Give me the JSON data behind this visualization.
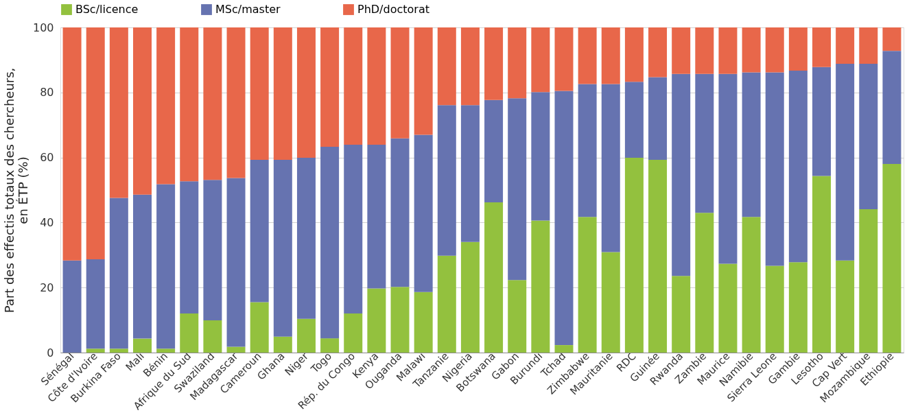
{
  "chart_data": {
    "type": "bar",
    "stacked": true,
    "ylabel": "Part des effectis totaux des chercheurs,\nen ÉTP (%)",
    "categories": [
      "Sénégal",
      "Côte d'Ivoire",
      "Burkina Faso",
      "Mali",
      "Bénin",
      "Afrique du Sud",
      "Swaziland",
      "Madagascar",
      "Cameroun",
      "Ghana",
      "Niger",
      "Togo",
      "Rép. du Congo",
      "Kenya",
      "Ouganda",
      "Malawi",
      "Tanzanie",
      "Nigeria",
      "Botswana",
      "Gabon",
      "Burundi",
      "Tchad",
      "Zimbabwe",
      "Mauritanie",
      "RDC",
      "Guinée",
      "Rwanda",
      "Zambie",
      "Maurice",
      "Namibie",
      "Sierra Leone",
      "Gambie",
      "Lesotho",
      "Cap Vert",
      "Mozambique",
      "Ethiopie"
    ],
    "series": [
      {
        "name": "BSc/licence",
        "color": "#93c13e",
        "values": [
          0,
          1.2,
          1.2,
          4.3,
          1.2,
          12,
          9.9,
          1.8,
          15.5,
          4.9,
          10.4,
          4.4,
          12,
          19.7,
          20.2,
          18.6,
          29.8,
          34,
          46.2,
          22.3,
          40.6,
          2.3,
          41.7,
          30.9,
          59.9,
          59.3,
          23.6,
          43,
          27.3,
          41.7,
          26.7,
          27.8,
          54.3,
          28.3,
          44.1,
          58
        ]
      },
      {
        "name": "MSc/master",
        "color": "#6673b0",
        "values": [
          28.3,
          27.5,
          46.4,
          44.3,
          50.6,
          40.7,
          43.2,
          51.9,
          43.8,
          54.4,
          49.5,
          58.9,
          51.9,
          44.2,
          45.7,
          48.4,
          46.3,
          42.1,
          31.5,
          55.9,
          39.5,
          78.2,
          40.9,
          51.7,
          23.4,
          25.4,
          62.1,
          42.7,
          58.4,
          44.5,
          59.5,
          58.9,
          33.5,
          60.5,
          44.7,
          34.8
        ]
      },
      {
        "name": "PhD/doctorat",
        "color": "#e8674a",
        "values": [
          71.7,
          71.3,
          52.4,
          51.4,
          48.2,
          47.3,
          46.9,
          46.3,
          40.7,
          40.7,
          40.1,
          36.7,
          36.1,
          36.1,
          34.1,
          33,
          23.9,
          23.9,
          22.3,
          21.8,
          19.9,
          19.5,
          17.4,
          17.4,
          16.7,
          15.3,
          14.3,
          14.3,
          14.3,
          13.8,
          13.8,
          13.3,
          12.2,
          11.2,
          11.2,
          7.2
        ]
      }
    ],
    "ylim": [
      0,
      100
    ],
    "yticks": [
      0,
      20,
      40,
      60,
      80,
      100
    ],
    "grid": "y",
    "legend": "top"
  }
}
